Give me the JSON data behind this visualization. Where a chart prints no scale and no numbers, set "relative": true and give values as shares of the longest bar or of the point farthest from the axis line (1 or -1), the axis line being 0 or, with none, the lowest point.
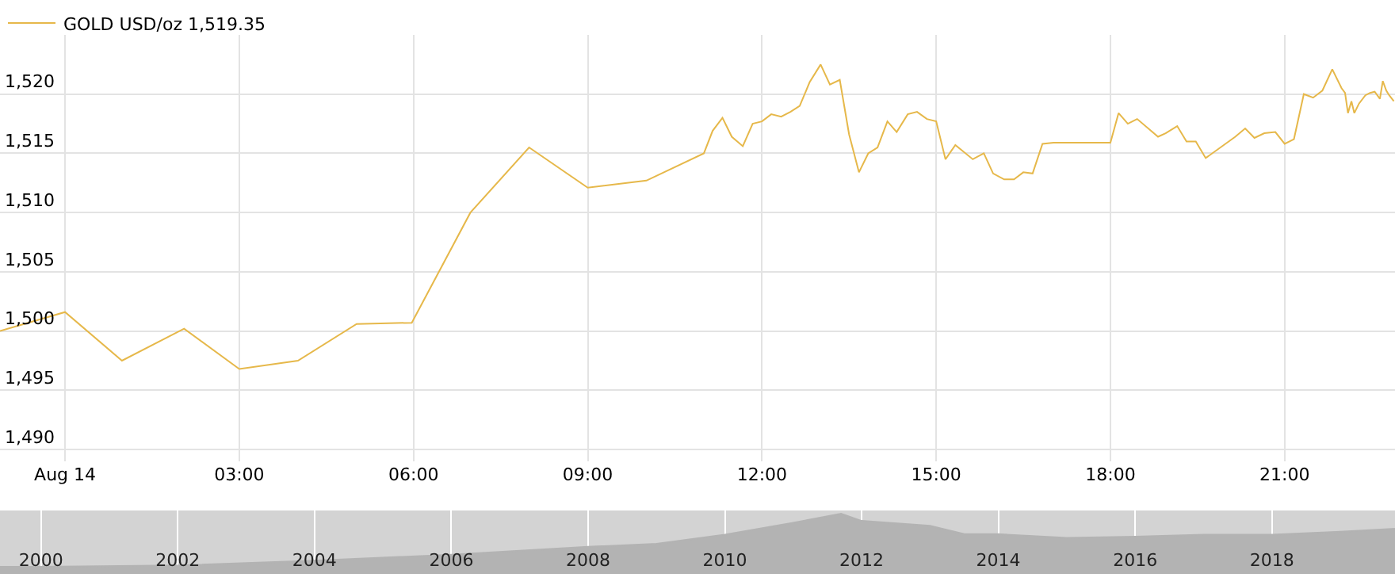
{
  "chart_data": [
    {
      "type": "line",
      "xlim": [
        -1.12,
        22.9
      ],
      "ylim": [
        1489,
        1525
      ],
      "xticks": [
        {
          "value": 0,
          "label": "Aug 14"
        },
        {
          "value": 3,
          "label": "03:00"
        },
        {
          "value": 6,
          "label": "06:00"
        },
        {
          "value": 9,
          "label": "09:00"
        },
        {
          "value": 12,
          "label": "12:00"
        },
        {
          "value": 15,
          "label": "15:00"
        },
        {
          "value": 18,
          "label": "18:00"
        },
        {
          "value": 21,
          "label": "21:00"
        }
      ],
      "yticks": [
        {
          "value": 1490,
          "label": "1,490"
        },
        {
          "value": 1495,
          "label": "1,495"
        },
        {
          "value": 1500,
          "label": "1,500"
        },
        {
          "value": 1505,
          "label": "1,505"
        },
        {
          "value": 1510,
          "label": "1,510"
        },
        {
          "value": 1515,
          "label": "1,515"
        },
        {
          "value": 1520,
          "label": "1,520"
        }
      ],
      "grid": true,
      "legend": "top left",
      "marker": "none",
      "line_style": "solid",
      "series": [
        {
          "name": "GOLD USD/oz 1,519.35",
          "color": "#e6b84a",
          "x": [
            -1.12,
            0,
            0.98,
            2.05,
            3.0,
            4.01,
            5.02,
            5.97,
            6.98,
            7.99,
            9.0,
            10.01,
            11.0,
            11.15,
            11.32,
            11.48,
            11.67,
            11.84,
            12.0,
            12.16,
            12.33,
            12.49,
            12.65,
            12.82,
            13.01,
            13.17,
            13.34,
            13.5,
            13.67,
            13.83,
            13.99,
            14.16,
            14.32,
            14.51,
            14.67,
            14.84,
            15.0,
            15.16,
            15.33,
            15.63,
            15.82,
            15.98,
            16.17,
            16.34,
            16.5,
            16.66,
            16.83,
            17.02,
            18.0,
            18.14,
            18.3,
            18.46,
            18.82,
            18.95,
            19.15,
            19.31,
            19.47,
            19.64,
            20.15,
            20.32,
            20.48,
            20.65,
            20.84,
            21.0,
            21.16,
            21.33,
            21.49,
            21.65,
            21.82,
            21.98,
            22.04,
            22.09,
            22.15,
            22.2,
            22.28,
            22.39,
            22.47,
            22.55,
            22.64,
            22.69,
            22.75,
            22.8,
            22.88
          ],
          "values": [
            1500.0,
            1501.6,
            1497.5,
            1500.2,
            1496.8,
            1497.5,
            1500.6,
            1500.7,
            1510.0,
            1515.5,
            1512.1,
            1512.7,
            1515.0,
            1516.9,
            1518.0,
            1516.4,
            1515.6,
            1517.5,
            1517.7,
            1518.3,
            1518.1,
            1518.5,
            1519.0,
            1521.0,
            1522.5,
            1520.8,
            1521.2,
            1516.6,
            1513.4,
            1515.0,
            1515.5,
            1517.7,
            1516.8,
            1518.3,
            1518.5,
            1517.9,
            1517.7,
            1514.5,
            1515.7,
            1514.5,
            1515.0,
            1513.3,
            1512.8,
            1512.8,
            1513.4,
            1513.3,
            1515.8,
            1515.9,
            1515.9,
            1518.4,
            1517.5,
            1517.9,
            1516.4,
            1516.7,
            1517.3,
            1516.0,
            1516.0,
            1514.6,
            1516.4,
            1517.1,
            1516.3,
            1516.7,
            1516.8,
            1515.8,
            1516.2,
            1520.0,
            1519.7,
            1520.3,
            1522.1,
            1520.5,
            1520.1,
            1518.4,
            1519.4,
            1518.4,
            1519.2,
            1519.9,
            1520.1,
            1520.2,
            1519.6,
            1521.1,
            1520.3,
            1519.9,
            1519.4
          ]
        }
      ]
    },
    {
      "type": "area",
      "relative": true,
      "xlim": [
        1999.4,
        2019.8
      ],
      "xticks": [
        2000,
        2002,
        2004,
        2006,
        2008,
        2010,
        2012,
        2014,
        2016,
        2018
      ],
      "grid": "x",
      "legend": false,
      "series": [
        {
          "color": "#b3b3b3",
          "x": [
            1999.4,
            2000,
            2002,
            2004,
            2006,
            2008,
            2009,
            2010,
            2011,
            2011.7,
            2012,
            2013,
            2013.5,
            2014,
            2015,
            2016,
            2017,
            2018,
            2019,
            2019.8
          ],
          "values": [
            0.12,
            0.12,
            0.14,
            0.22,
            0.32,
            0.45,
            0.5,
            0.65,
            0.85,
            1.0,
            0.88,
            0.8,
            0.66,
            0.66,
            0.6,
            0.62,
            0.65,
            0.65,
            0.7,
            0.75
          ]
        }
      ]
    }
  ]
}
